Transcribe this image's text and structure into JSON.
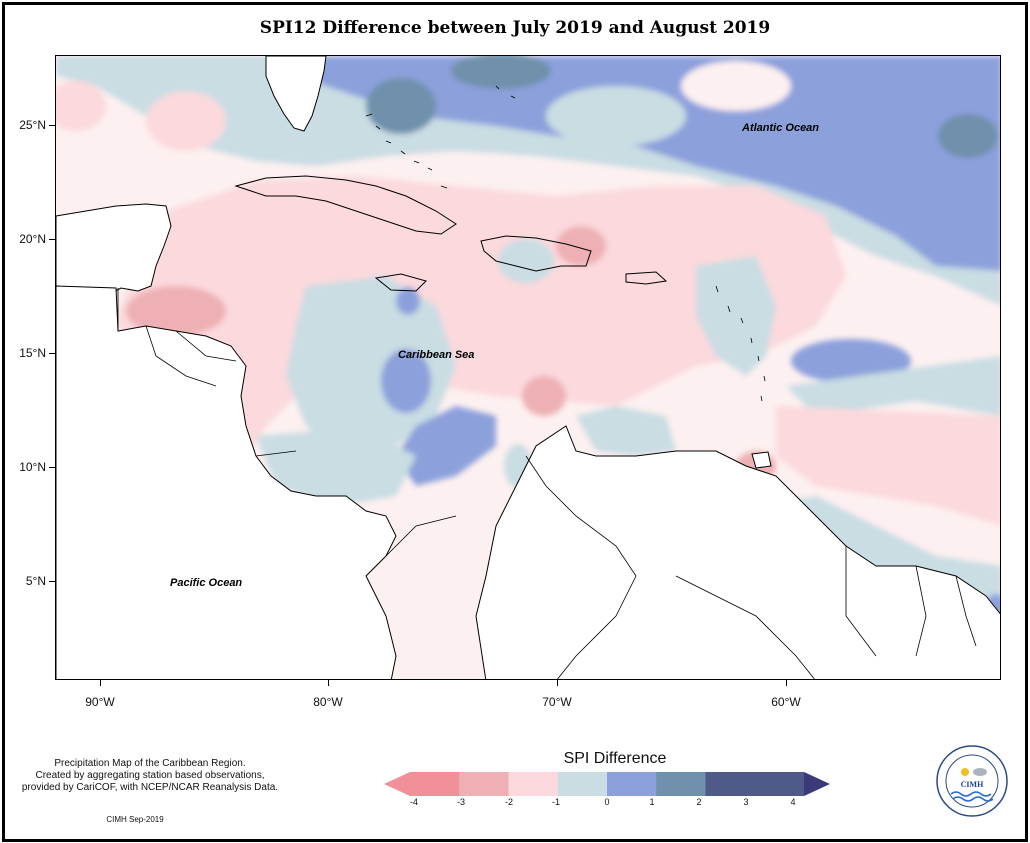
{
  "title": "SPI12 Difference between July 2019 and August 2019",
  "map": {
    "labels": {
      "atlantic": "Atlantic Ocean",
      "caribbean": "Caribbean Sea",
      "pacific": "Pacific Ocean"
    },
    "lat_ticks": [
      "25°N",
      "20°N",
      "15°N",
      "10°N",
      "5°N"
    ],
    "lon_ticks": [
      "90°W",
      "80°W",
      "70°W",
      "60°W"
    ]
  },
  "notes": {
    "line1": "Precipitation Map of the Caribbean Region.",
    "line2": "Created by aggregating station based observations,",
    "line3": "provided by CariCOF, with NCEP/NCAR Reanalysis Data.",
    "credit": "CIMH Sep-2019"
  },
  "legend": {
    "title": "SPI Difference",
    "ticks": [
      "-4",
      "-3",
      "-2",
      "-1",
      "0",
      "1",
      "2",
      "3",
      "4"
    ],
    "colors": [
      "#f2909a",
      "#eeb0b4",
      "#fbd9dd",
      "#fdf0f0",
      "#c9dde3",
      "#8ca0dc",
      "#7090ac",
      "#505a88",
      "#3a3a78"
    ]
  },
  "logo": {
    "text": "CIMH",
    "ring_text": "Caribbean Institute for Meteorology and Hydrology"
  }
}
